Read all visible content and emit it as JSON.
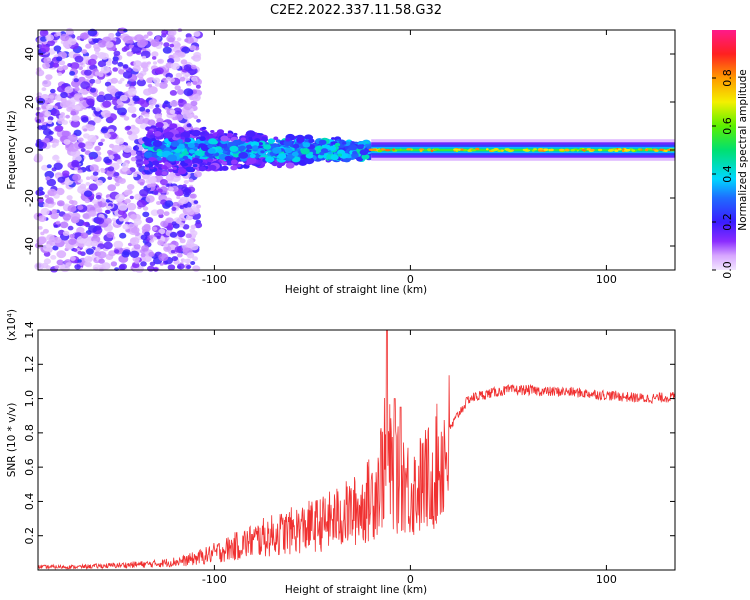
{
  "title": "C2E2.2022.337.11.58.G32",
  "chart_data": [
    {
      "type": "heatmap",
      "xlabel": "Height of straight line (km)",
      "ylabel": "Frequency (Hz)",
      "xlim": [
        -190,
        135
      ],
      "ylim": [
        -50,
        50
      ],
      "xticks": [
        -100,
        0,
        100
      ],
      "yticks": [
        -40,
        -20,
        0,
        20,
        40
      ],
      "colorbar": {
        "label": "Normalized spectral amplitude",
        "range": [
          0.0,
          1.0
        ],
        "ticks": [
          "0.0",
          "0.2",
          "0.4",
          "0.6",
          "0.8"
        ],
        "colormap": "rainbow (purple-blue-cyan-green-yellow-orange-red-pink)"
      },
      "regions": [
        {
          "x_range": [
            -190,
            -108
          ],
          "freq_spread_hz": [
            -50,
            50
          ],
          "amplitude": "0.0-0.3 (noise)"
        },
        {
          "x_range": [
            -135,
            -20
          ],
          "freq_spread_hz": [
            -12,
            12
          ],
          "amplitude": "0.1-0.5"
        },
        {
          "x_range": [
            -20,
            135
          ],
          "freq_spread_hz": [
            -4,
            4
          ],
          "amplitude": "0.4-0.9, peak at 0 Hz"
        }
      ]
    },
    {
      "type": "line",
      "xlabel": "Height of straight line (km)",
      "ylabel": "SNR (10 * v/v)",
      "yscale_label": "(x10⁴)",
      "xlim": [
        -190,
        135
      ],
      "ylim": [
        0,
        1.4
      ],
      "xticks": [
        -100,
        0,
        100
      ],
      "yticks": [
        "0.2",
        "0.4",
        "0.6",
        "0.8",
        "1.0",
        "1.2",
        "1.4"
      ],
      "series": [
        {
          "color": "#f03030",
          "x": [
            -190,
            -170,
            -150,
            -130,
            -115,
            -105,
            -95,
            -85,
            -75,
            -65,
            -55,
            -45,
            -35,
            -25,
            -18,
            -12,
            -8,
            -4,
            0,
            5,
            10,
            15,
            20,
            25,
            30,
            40,
            50,
            60,
            70,
            80,
            90,
            100,
            110,
            120,
            135
          ],
          "y": [
            0.02,
            0.02,
            0.03,
            0.04,
            0.06,
            0.09,
            0.13,
            0.17,
            0.21,
            0.24,
            0.27,
            0.3,
            0.35,
            0.4,
            0.5,
            0.75,
            0.55,
            0.62,
            0.5,
            0.55,
            0.6,
            0.7,
            0.82,
            0.92,
            1.0,
            1.03,
            1.05,
            1.05,
            1.04,
            1.04,
            1.03,
            1.02,
            1.01,
            1.0,
            1.01
          ],
          "peaks": [
            [
              -12,
              1.42
            ],
            [
              -8,
              1.0
            ],
            [
              -5,
              0.95
            ],
            [
              10,
              0.3
            ]
          ]
        }
      ]
    }
  ]
}
